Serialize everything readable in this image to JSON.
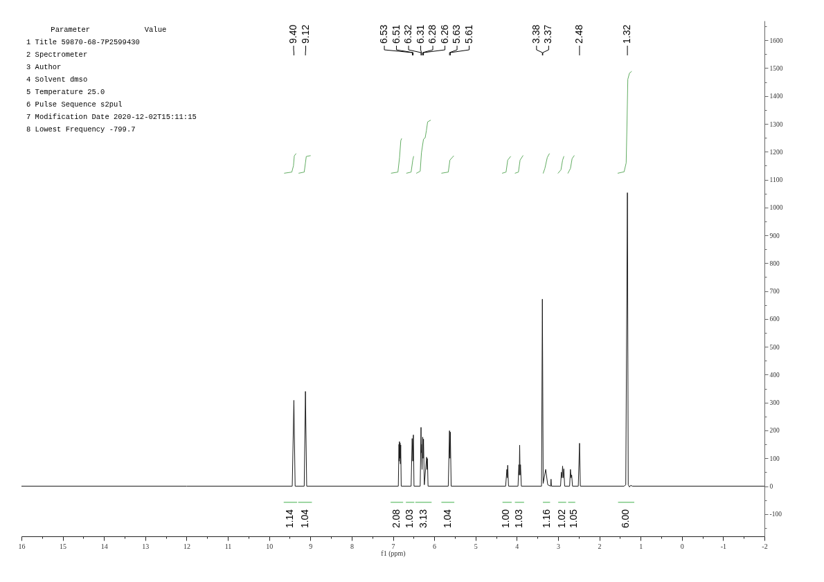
{
  "chart_data": {
    "type": "line",
    "xlabel": "f1 (ppm)",
    "xlim": [
      16,
      -2
    ],
    "xticks": [
      16,
      {
        "value": 15.5,
        "label": null
      },
      15,
      {
        "value": 14.5,
        "label": null
      },
      14,
      {
        "value": 13.5,
        "label": null
      },
      13,
      {
        "value": 12.5,
        "label": null
      },
      12,
      {
        "value": 11.5,
        "label": null
      },
      11,
      {
        "value": 10.5,
        "label": null
      },
      10,
      {
        "value": 9.5,
        "label": null
      },
      9,
      {
        "value": 8.5,
        "label": null
      },
      8,
      {
        "value": 7.5,
        "label": null
      },
      7,
      {
        "value": 6.5,
        "label": null
      },
      6,
      {
        "value": 5.5,
        "label": null
      },
      5,
      {
        "value": 4.5,
        "label": null
      },
      4,
      {
        "value": 3.5,
        "label": null
      },
      3,
      {
        "value": 2.5,
        "label": null
      },
      2,
      {
        "value": 1.5,
        "label": null
      },
      1,
      {
        "value": 0.5,
        "label": null
      },
      0,
      {
        "value": -0.5,
        "label": null
      },
      -1,
      {
        "value": -1.5,
        "label": null
      },
      -2
    ],
    "ylim": [
      -180,
      1670
    ],
    "yticks": [
      {
        "value": -150,
        "label": null
      },
      -100,
      {
        "value": -50,
        "label": null
      },
      0,
      {
        "value": 50,
        "label": null
      },
      100,
      {
        "value": 150,
        "label": null
      },
      200,
      {
        "value": 250,
        "label": null
      },
      300,
      {
        "value": 350,
        "label": null
      },
      400,
      {
        "value": 450,
        "label": null
      },
      500,
      {
        "value": 550,
        "label": null
      },
      600,
      {
        "value": 650,
        "label": null
      },
      700,
      {
        "value": 750,
        "label": null
      },
      800,
      {
        "value": 850,
        "label": null
      },
      900,
      {
        "value": 950,
        "label": null
      },
      1000,
      {
        "value": 1050,
        "label": null
      },
      1100,
      {
        "value": 1150,
        "label": null
      },
      1200,
      {
        "value": 1250,
        "label": null
      },
      1300,
      {
        "value": 1350,
        "label": null
      },
      1400,
      {
        "value": 1450,
        "label": null
      },
      1500,
      {
        "value": 1550,
        "label": null
      },
      1600,
      {
        "value": 1650,
        "label": null
      }
    ],
    "series": [
      {
        "color": "#1a1a1a",
        "x": [
          16,
          12,
          9.44,
          9.4,
          9.37,
          9.15,
          9.12,
          9.09,
          6.87,
          6.855,
          6.848,
          6.842,
          6.835,
          6.828,
          6.82,
          6.812,
          6.8,
          6.56,
          6.535,
          6.52,
          6.505,
          6.49,
          6.34,
          6.32,
          6.314,
          6.31,
          6.295,
          6.28,
          6.27,
          6.26,
          6.24,
          6.185,
          6.175,
          6.165,
          6.15,
          5.66,
          5.63,
          5.62,
          5.61,
          5.59,
          4.27,
          4.24,
          4.23,
          4.22,
          4.2,
          3.97,
          3.95,
          3.94,
          3.93,
          3.92,
          3.91,
          3.89,
          3.4,
          3.38,
          3.36,
          3.3,
          3.25,
          3.18,
          3.17,
          3.16,
          2.94,
          2.92,
          2.905,
          2.89,
          2.875,
          2.86,
          2.84,
          2.72,
          2.7,
          2.685,
          2.67,
          2.65,
          2.51,
          2.48,
          2.46,
          1.4,
          1.36,
          1.32,
          1.3,
          1.27,
          1.24,
          1.2,
          -2
        ],
        "values": [
          0,
          0,
          0,
          308,
          0,
          0,
          340,
          0,
          0,
          150,
          90,
          160,
          100,
          155,
          80,
          148,
          0,
          0,
          171,
          90,
          184,
          0,
          0,
          211,
          120,
          150,
          60,
          176,
          100,
          169,
          5,
          104,
          60,
          99,
          0,
          0,
          199,
          100,
          194,
          0,
          0,
          60,
          30,
          75,
          0,
          0,
          77,
          40,
          147,
          40,
          77,
          0,
          0,
          671,
          10,
          60,
          5,
          0,
          25,
          0,
          0,
          50,
          30,
          72,
          30,
          62,
          0,
          0,
          60,
          30,
          40,
          0,
          0,
          154,
          0,
          0,
          5,
          1053,
          5,
          -3,
          3,
          0,
          0
        ]
      },
      {
        "color": "#62ad62",
        "x": [
          9.63,
          9.45,
          9.41,
          9.39,
          9.35,
          9.31,
          9.28,
          9.15,
          9.12,
          9.1,
          9.0,
          8,
          7.04,
          6.88,
          6.84,
          6.81,
          6.79,
          6.73,
          6.67,
          6.56,
          6.52,
          6.5,
          6.46,
          6.43,
          6.34,
          6.31,
          6.26,
          6.22,
          6.19,
          6.16,
          6.09,
          6,
          5.82,
          5.66,
          5.62,
          5.53,
          5,
          4.35,
          4.26,
          4.22,
          4.15,
          4.1,
          4.04,
          3.96,
          3.92,
          3.85,
          3.5,
          3.36,
          3.32,
          3.26,
          3.21,
          3.1,
          3.0,
          2.93,
          2.89,
          2.86,
          2.8,
          2.76,
          2.7,
          2.66,
          2.61,
          2,
          1.55,
          1.4,
          1.35,
          1.33,
          1.31,
          1.27,
          1.22
        ],
        "values": [
          1123,
          1127,
          1150,
          1185,
          1193,
          null,
          1123,
          1127,
          1160,
          1183,
          1186,
          null,
          1123,
          1127,
          1180,
          1240,
          1247,
          null,
          1123,
          1127,
          1170,
          1183,
          null,
          1123,
          1130,
          1196,
          1245,
          1250,
          1276,
          1307,
          1313,
          null,
          1123,
          1127,
          1170,
          1185,
          null,
          1123,
          1127,
          1170,
          1183,
          null,
          1123,
          1127,
          1170,
          1186,
          null,
          1123,
          1140,
          1180,
          1193,
          null,
          1123,
          1135,
          1170,
          1183,
          null,
          1123,
          1140,
          1175,
          1186,
          null,
          1123,
          1128,
          1160,
          1300,
          1460,
          1482,
          1488
        ]
      },
      {
        "color": "#3fae49",
        "x": [
          9.64,
          9.33,
          9.31,
          9.29,
          8.97,
          8,
          7.05,
          6.76,
          6.72,
          6.68,
          6.49,
          6.47,
          6.45,
          6.07,
          6,
          5.82,
          5.52,
          5,
          4.34,
          4.13,
          4.1,
          4.04,
          3.83,
          3.5,
          3.36,
          3.2,
          3.0,
          2.99,
          2.81,
          2.78,
          2.75,
          2.59,
          2,
          1.54,
          1.16
        ],
        "values": [
          -58,
          -58,
          null,
          -58,
          -58,
          null,
          -58,
          -58,
          null,
          -58,
          -58,
          null,
          -58,
          -58,
          null,
          -58,
          -58,
          null,
          -58,
          -58,
          null,
          -58,
          -58,
          null,
          -58,
          -58,
          null,
          -58,
          -58,
          null,
          -58,
          -58,
          null,
          -58,
          -58
        ]
      }
    ],
    "annotations": [
      "Parameter",
      "Value",
      "1 Title 59870-68-7P2599430",
      "2 Spectrometer",
      "3 Author",
      "4 Solvent dmso",
      "5 Temperature 25.0",
      "6 Pulse Sequence s2pul",
      "7 Modification Date 2020-12-02T15:11:15",
      "8 Lowest Frequency -799.7",
      {
        "text": "9.40",
        "x": 9.4
      },
      {
        "text": "9.12",
        "x": 9.12
      },
      {
        "text": "6.53",
        "x": 6.53
      },
      {
        "text": "6.51",
        "x": 6.51
      },
      {
        "text": "6.32",
        "x": 6.32
      },
      {
        "text": "6.31",
        "x": 6.31
      },
      {
        "text": "6.28",
        "x": 6.28
      },
      {
        "text": "6.26",
        "x": 6.26
      },
      {
        "text": "5.63",
        "x": 5.63
      },
      {
        "text": "5.61",
        "x": 5.61
      },
      {
        "text": "3.38",
        "x": 3.38
      },
      {
        "text": "3.37",
        "x": 3.37
      },
      {
        "text": "2.48",
        "x": 2.48
      },
      {
        "text": "1.32",
        "x": 1.32
      },
      {
        "text": "1.14",
        "x": 9.49,
        "y": -58
      },
      {
        "text": "1.04",
        "x": 9.13,
        "y": -58
      },
      {
        "text": "2.08",
        "x": 6.9,
        "y": -58
      },
      {
        "text": "1.03",
        "x": 6.59,
        "y": -58
      },
      {
        "text": "3.13",
        "x": 6.26,
        "y": -58
      },
      {
        "text": "1.04",
        "x": 5.66,
        "y": -58
      },
      {
        "text": "1.00",
        "x": 4.26,
        "y": -58
      },
      {
        "text": "1.03",
        "x": 3.94,
        "y": -58
      },
      {
        "text": "1.16",
        "x": 3.27,
        "y": -58
      },
      {
        "text": "1.02",
        "x": 2.9,
        "y": -58
      },
      {
        "text": "1.05",
        "x": 2.62,
        "y": -58
      },
      {
        "text": "6.00",
        "x": 1.35,
        "y": -58
      }
    ]
  }
}
